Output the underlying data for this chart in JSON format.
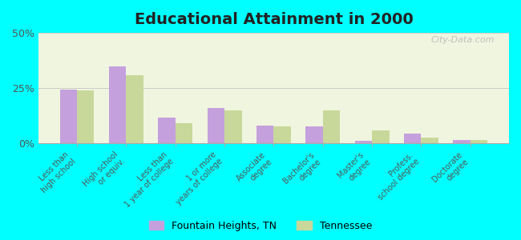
{
  "title": "Educational Attainment in 2000",
  "categories": [
    "Less than\nhigh school",
    "High school\nor equiv.",
    "Less than\n1 year of college",
    "1 or more\nyears of college",
    "Associate\ndegree",
    "Bachelor's\ndegree",
    "Master's\ndegree",
    "Profess.\nschool degree",
    "Doctorate\ndegree"
  ],
  "fountain_heights": [
    24.5,
    35.0,
    11.5,
    16.0,
    8.0,
    7.5,
    1.0,
    4.5,
    1.5
  ],
  "tennessee": [
    24.0,
    31.0,
    9.0,
    15.0,
    7.5,
    15.0,
    6.0,
    2.5,
    1.5
  ],
  "fountain_color": "#c4a0dc",
  "tennessee_color": "#c8d89a",
  "bg_color": "#00ffff",
  "plot_bg_color": "#f0f5e0",
  "ylim": [
    0,
    50
  ],
  "yticks": [
    0,
    25,
    50
  ],
  "ytick_labels": [
    "0%",
    "25%",
    "50%"
  ],
  "legend_label_1": "Fountain Heights, TN",
  "legend_label_2": "Tennessee",
  "watermark": "City-Data.com"
}
